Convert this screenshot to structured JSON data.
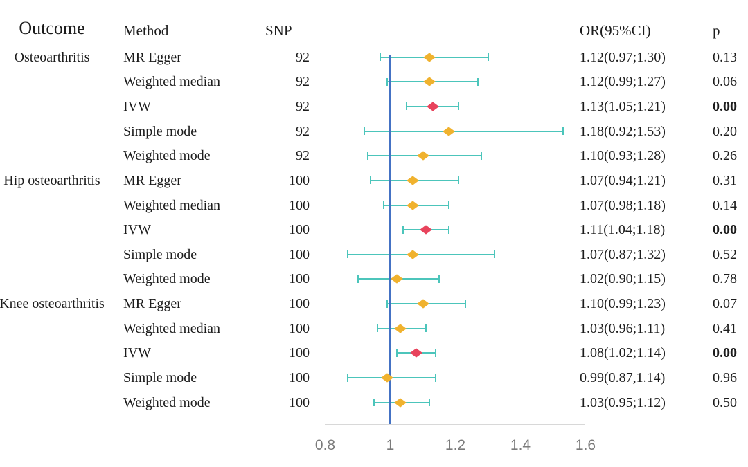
{
  "header": {
    "outcome": "Outcome",
    "method": "Method",
    "snp": "SNP",
    "or_ci": "OR(95%CI)",
    "p": "p"
  },
  "chart_data": {
    "type": "forest",
    "title": "",
    "columns": [
      "Outcome",
      "Method",
      "SNP",
      "OR(95%CI)",
      "p"
    ],
    "x_axis": {
      "ticks": [
        0.8,
        1,
        1.2,
        1.4,
        1.6
      ],
      "labels": [
        "0.8",
        "1",
        "1.2",
        "1.4",
        "1.6"
      ],
      "range": [
        0.8,
        1.6
      ],
      "reference_line": 1
    },
    "colors": {
      "ci_bar": "#4cc5bb",
      "marker": "#f0b22e",
      "marker_ivw": "#e8435c",
      "ref_line": "#4472c4",
      "axis_line": "#d8d8d8",
      "axis_label": "#7b7b7b",
      "text": "#1c1c1c"
    },
    "rows": [
      {
        "outcome": "Osteoarthritis",
        "method": "MR Egger",
        "snp": "92",
        "or": 1.12,
        "lo": 0.97,
        "hi": 1.3,
        "or_text": "1.12(0.97;1.30)",
        "p": "0.13",
        "p_bold": false,
        "ivw": false
      },
      {
        "outcome": "",
        "method": "Weighted median",
        "snp": "92",
        "or": 1.12,
        "lo": 0.99,
        "hi": 1.27,
        "or_text": "1.12(0.99;1.27)",
        "p": "0.06",
        "p_bold": false,
        "ivw": false
      },
      {
        "outcome": "",
        "method": "IVW",
        "snp": "92",
        "or": 1.13,
        "lo": 1.05,
        "hi": 1.21,
        "or_text": "1.13(1.05;1.21)",
        "p": "0.00",
        "p_bold": true,
        "ivw": true
      },
      {
        "outcome": "",
        "method": "Simple mode",
        "snp": "92",
        "or": 1.18,
        "lo": 0.92,
        "hi": 1.53,
        "or_text": "1.18(0.92;1.53)",
        "p": "0.20",
        "p_bold": false,
        "ivw": false
      },
      {
        "outcome": "",
        "method": "Weighted mode",
        "snp": "92",
        "or": 1.1,
        "lo": 0.93,
        "hi": 1.28,
        "or_text": "1.10(0.93;1.28)",
        "p": "0.26",
        "p_bold": false,
        "ivw": false
      },
      {
        "outcome": "Hip osteoarthritis",
        "method": "MR Egger",
        "snp": "100",
        "or": 1.07,
        "lo": 0.94,
        "hi": 1.21,
        "or_text": "1.07(0.94;1.21)",
        "p": "0.31",
        "p_bold": false,
        "ivw": false
      },
      {
        "outcome": "",
        "method": "Weighted median",
        "snp": "100",
        "or": 1.07,
        "lo": 0.98,
        "hi": 1.18,
        "or_text": "1.07(0.98;1.18)",
        "p": "0.14",
        "p_bold": false,
        "ivw": false
      },
      {
        "outcome": "",
        "method": "IVW",
        "snp": "100",
        "or": 1.11,
        "lo": 1.04,
        "hi": 1.18,
        "or_text": "1.11(1.04;1.18)",
        "p": "0.00",
        "p_bold": true,
        "ivw": true
      },
      {
        "outcome": "",
        "method": "Simple mode",
        "snp": "100",
        "or": 1.07,
        "lo": 0.87,
        "hi": 1.32,
        "or_text": "1.07(0.87;1.32)",
        "p": "0.52",
        "p_bold": false,
        "ivw": false
      },
      {
        "outcome": "",
        "method": "Weighted mode",
        "snp": "100",
        "or": 1.02,
        "lo": 0.9,
        "hi": 1.15,
        "or_text": "1.02(0.90;1.15)",
        "p": "0.78",
        "p_bold": false,
        "ivw": false
      },
      {
        "outcome": "Knee osteoarthritis",
        "method": "MR Egger",
        "snp": "100",
        "or": 1.1,
        "lo": 0.99,
        "hi": 1.23,
        "or_text": "1.10(0.99;1.23)",
        "p": "0.07",
        "p_bold": false,
        "ivw": false
      },
      {
        "outcome": "",
        "method": "Weighted median",
        "snp": "100",
        "or": 1.03,
        "lo": 0.96,
        "hi": 1.11,
        "or_text": "1.03(0.96;1.11)",
        "p": "0.41",
        "p_bold": false,
        "ivw": false
      },
      {
        "outcome": "",
        "method": "IVW",
        "snp": "100",
        "or": 1.08,
        "lo": 1.02,
        "hi": 1.14,
        "or_text": "1.08(1.02;1.14)",
        "p": "0.00",
        "p_bold": true,
        "ivw": true
      },
      {
        "outcome": "",
        "method": "Simple mode",
        "snp": "100",
        "or": 0.99,
        "lo": 0.87,
        "hi": 1.14,
        "or_text": "0.99(0.87,1.14)",
        "p": "0.96",
        "p_bold": false,
        "ivw": false
      },
      {
        "outcome": "",
        "method": "Weighted mode",
        "snp": "100",
        "or": 1.03,
        "lo": 0.95,
        "hi": 1.12,
        "or_text": "1.03(0.95;1.12)",
        "p": "0.50",
        "p_bold": false,
        "ivw": false
      }
    ]
  }
}
